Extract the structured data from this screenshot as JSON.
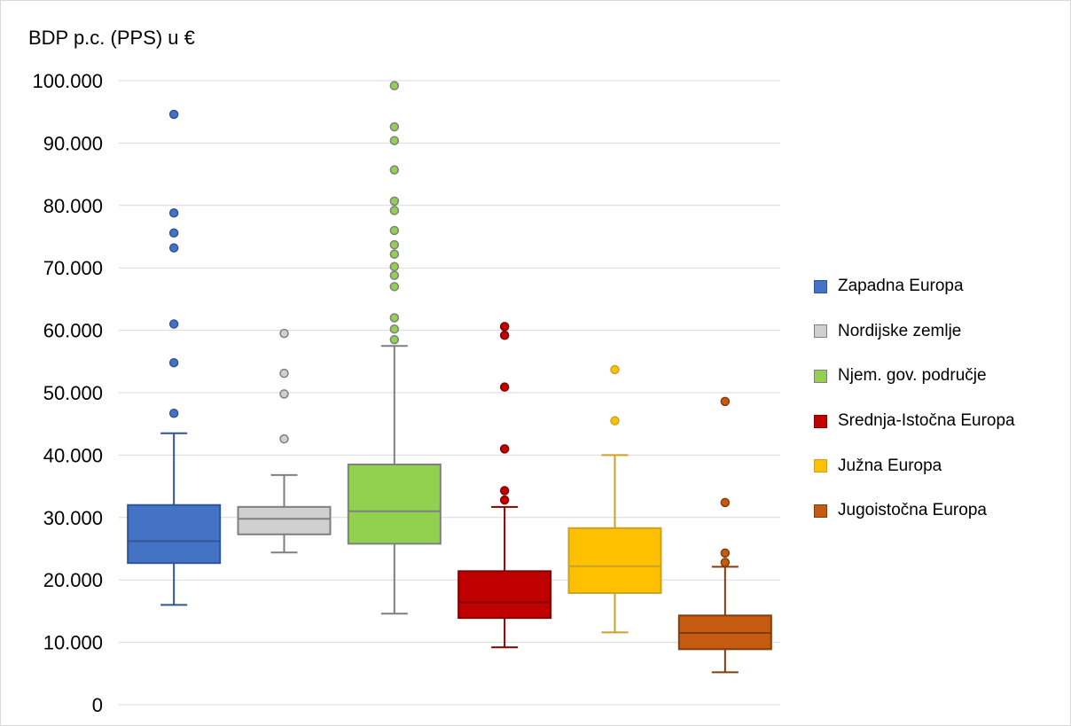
{
  "chart_data": {
    "type": "boxplot",
    "ylabel": "BDP p.c. (PPS) u €",
    "ylim": [
      0,
      100000
    ],
    "y_tick_labels": [
      "0",
      "10.000",
      "20.000",
      "30.000",
      "40.000",
      "50.000",
      "60.000",
      "70.000",
      "80.000",
      "90.000",
      "100.000"
    ],
    "grid": true,
    "legend_position": "right",
    "series": [
      {
        "name": "Zapadna Europa",
        "color": "#4472c4",
        "edge": "#2f5597",
        "min": 16000,
        "q1": 22700,
        "median": 26200,
        "q3": 32000,
        "max": 43500,
        "outliers": [
          46700,
          54800,
          61000,
          73200,
          75600,
          78800,
          94600
        ]
      },
      {
        "name": "Nordijske zemlje",
        "color": "#d0d0d0",
        "edge": "#7f7f7f",
        "min": 24400,
        "q1": 27300,
        "median": 29800,
        "q3": 31700,
        "max": 36800,
        "outliers": [
          42600,
          49800,
          53100,
          59500
        ]
      },
      {
        "name": "Njem. gov. područje",
        "color": "#92d050",
        "edge": "#7f7f7f",
        "min": 14600,
        "q1": 25800,
        "median": 31000,
        "q3": 38500,
        "max": 57500,
        "outliers": [
          58500,
          60200,
          62000,
          67000,
          68800,
          70200,
          72200,
          73700,
          76000,
          79200,
          80700,
          85700,
          90400,
          92600,
          99200
        ]
      },
      {
        "name": "Srednja-Istočna Europa",
        "color": "#c00000",
        "edge": "#7f0000",
        "min": 9200,
        "q1": 13900,
        "median": 16400,
        "q3": 21400,
        "max": 31700,
        "outliers": [
          32800,
          34300,
          41000,
          50900,
          59200,
          60600
        ]
      },
      {
        "name": "Južna Europa",
        "color": "#ffc000",
        "edge": "#c9a227",
        "min": 11600,
        "q1": 17900,
        "median": 22200,
        "q3": 28300,
        "max": 40000,
        "outliers": [
          45500,
          53700
        ]
      },
      {
        "name": "Jugoistočna Europa",
        "color": "#c55a11",
        "edge": "#843c0c",
        "min": 5200,
        "q1": 8900,
        "median": 11500,
        "q3": 14300,
        "max": 22100,
        "outliers": [
          22800,
          24300,
          32400,
          48600
        ]
      }
    ]
  }
}
